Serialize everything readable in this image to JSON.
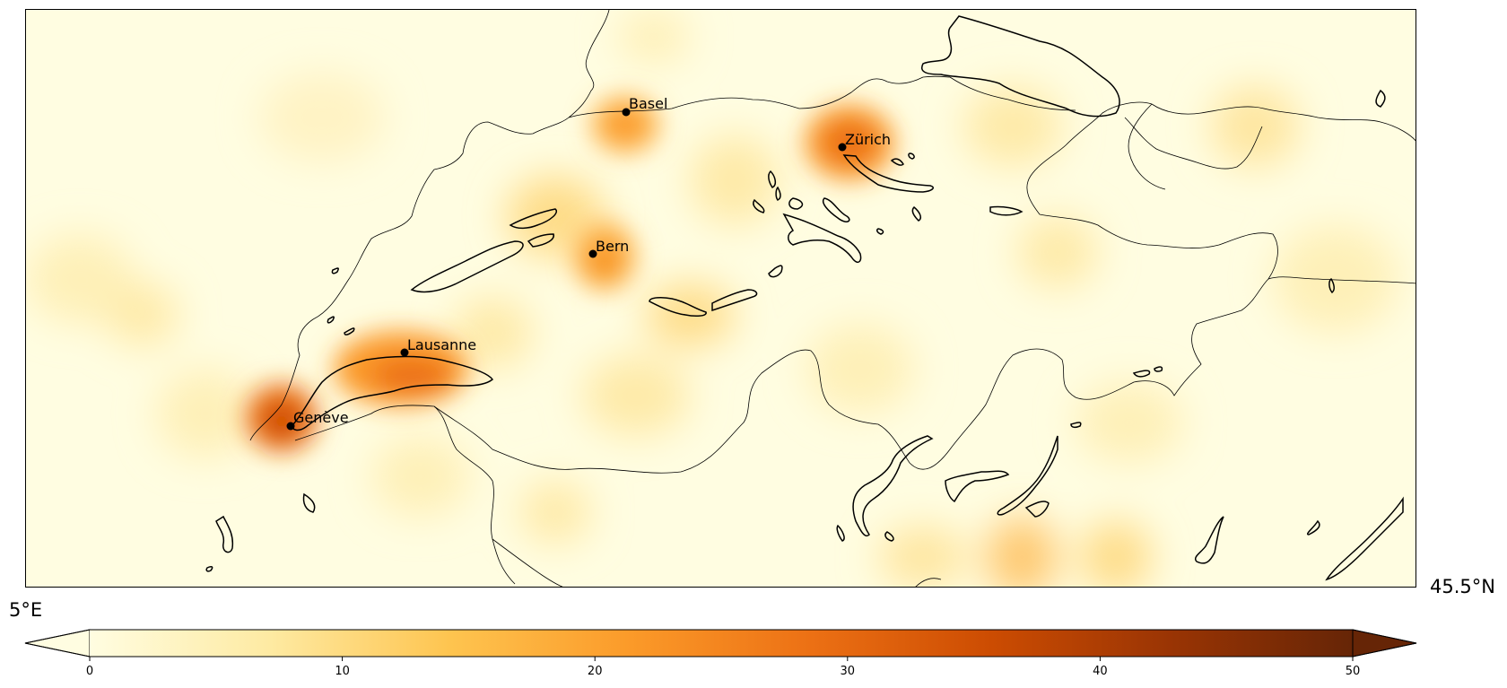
{
  "map": {
    "lat_label": "45.5°N",
    "lon_label": "5°E",
    "cities": [
      {
        "name": "Basel"
      },
      {
        "name": "Zürich"
      },
      {
        "name": "Bern"
      },
      {
        "name": "Lausanne"
      },
      {
        "name": "Genève"
      }
    ]
  },
  "colorbar": {
    "ticks": [
      "0",
      "10",
      "20",
      "30",
      "40",
      "50"
    ],
    "min": 0,
    "max": 50,
    "extend": "both",
    "colormap": "YlOrBr",
    "colors": [
      "#fffde1",
      "#feeaa2",
      "#fec44f",
      "#fb9a29",
      "#ec7014",
      "#cc4c02",
      "#993404",
      "#662506"
    ]
  }
}
